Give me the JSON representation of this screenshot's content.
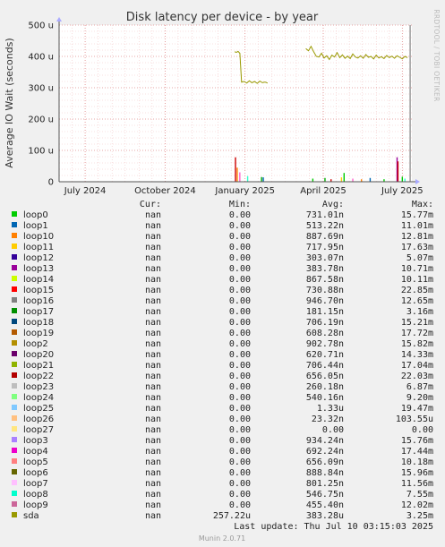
{
  "chart_data": {
    "type": "line",
    "title": "Disk latency per device - by year",
    "ylabel": "Average IO Wait (seconds)",
    "side_label": "RRDTOOL / TOBI OETIKER",
    "y_ticks": [
      "0",
      "100 u",
      "200 u",
      "300 u",
      "400 u",
      "500 u"
    ],
    "y_tick_values": [
      0,
      100,
      200,
      300,
      400,
      500
    ],
    "ylim": [
      0,
      500
    ],
    "y_unit": "u (microseconds)",
    "x_ticks": [
      "July 2024",
      "October 2024",
      "January 2025",
      "April 2025",
      "July 2025"
    ],
    "x_tick_values": [
      "2024-07-01",
      "2024-10-01",
      "2025-01-01",
      "2025-04-01",
      "2025-07-01"
    ],
    "xlim": [
      "2024-06-01",
      "2025-07-12"
    ],
    "grid": true,
    "series": [
      {
        "name": "sda",
        "color": "#999900",
        "points": [
          [
            "2024-12-20",
            415
          ],
          [
            "2024-12-22",
            413
          ],
          [
            "2024-12-24",
            416
          ],
          [
            "2024-12-26",
            410
          ],
          [
            "2024-12-28",
            318
          ],
          [
            "2024-12-31",
            320
          ],
          [
            "2025-01-03",
            315
          ],
          [
            "2025-01-06",
            322
          ],
          [
            "2025-01-09",
            316
          ],
          [
            "2025-01-12",
            320
          ],
          [
            "2025-01-15",
            314
          ],
          [
            "2025-01-18",
            321
          ],
          [
            "2025-01-21",
            316
          ],
          [
            "2025-01-24",
            318
          ],
          [
            "2025-01-27",
            315
          ],
          [
            "2025-03-12",
            425
          ],
          [
            "2025-03-15",
            418
          ],
          [
            "2025-03-18",
            432
          ],
          [
            "2025-03-21",
            415
          ],
          [
            "2025-03-24",
            400
          ],
          [
            "2025-03-27",
            398
          ],
          [
            "2025-03-30",
            410
          ],
          [
            "2025-04-02",
            395
          ],
          [
            "2025-04-05",
            402
          ],
          [
            "2025-04-08",
            390
          ],
          [
            "2025-04-11",
            404
          ],
          [
            "2025-04-14",
            398
          ],
          [
            "2025-04-17",
            412
          ],
          [
            "2025-04-20",
            396
          ],
          [
            "2025-04-23",
            405
          ],
          [
            "2025-04-26",
            394
          ],
          [
            "2025-04-29",
            401
          ],
          [
            "2025-05-02",
            393
          ],
          [
            "2025-05-05",
            408
          ],
          [
            "2025-05-08",
            398
          ],
          [
            "2025-05-11",
            395
          ],
          [
            "2025-05-14",
            402
          ],
          [
            "2025-05-17",
            394
          ],
          [
            "2025-05-20",
            406
          ],
          [
            "2025-05-23",
            397
          ],
          [
            "2025-05-26",
            400
          ],
          [
            "2025-05-29",
            392
          ],
          [
            "2025-06-01",
            404
          ],
          [
            "2025-06-04",
            395
          ],
          [
            "2025-06-07",
            399
          ],
          [
            "2025-06-10",
            393
          ],
          [
            "2025-06-13",
            403
          ],
          [
            "2025-06-16",
            396
          ],
          [
            "2025-06-19",
            401
          ],
          [
            "2025-06-22",
            394
          ],
          [
            "2025-06-25",
            402
          ],
          [
            "2025-06-28",
            397
          ],
          [
            "2025-07-01",
            392
          ],
          [
            "2025-07-04",
            400
          ],
          [
            "2025-07-07",
            396
          ]
        ]
      }
    ],
    "spikes": [
      {
        "date": "2024-12-21",
        "value": 78,
        "color": "#cc0000"
      },
      {
        "date": "2024-12-23",
        "value": 45,
        "color": "#ff8000"
      },
      {
        "date": "2024-12-26",
        "value": 30,
        "color": "#ff66cc"
      },
      {
        "date": "2025-01-04",
        "value": 18,
        "color": "#33ffcc"
      },
      {
        "date": "2025-01-20",
        "value": 15,
        "color": "#00aa00"
      },
      {
        "date": "2025-01-22",
        "value": 14,
        "color": "#0066b3"
      },
      {
        "date": "2025-03-20",
        "value": 10,
        "color": "#00cc00"
      },
      {
        "date": "2025-04-03",
        "value": 12,
        "color": "#00aa00"
      },
      {
        "date": "2025-04-10",
        "value": 8,
        "color": "#cc0000"
      },
      {
        "date": "2025-04-22",
        "value": 14,
        "color": "#ffcc00"
      },
      {
        "date": "2025-04-25",
        "value": 28,
        "color": "#00cc00"
      },
      {
        "date": "2025-05-05",
        "value": 10,
        "color": "#ff66cc"
      },
      {
        "date": "2025-05-15",
        "value": 8,
        "color": "#ff8000"
      },
      {
        "date": "2025-05-25",
        "value": 12,
        "color": "#0066b3"
      },
      {
        "date": "2025-06-10",
        "value": 8,
        "color": "#00cc00"
      },
      {
        "date": "2025-06-25",
        "value": 78,
        "color": "#990099"
      },
      {
        "date": "2025-06-26",
        "value": 65,
        "color": "#cc0000"
      },
      {
        "date": "2025-07-01",
        "value": 16,
        "color": "#00cc00"
      },
      {
        "date": "2025-07-04",
        "value": 10,
        "color": "#33ffcc"
      }
    ],
    "now_marker_date": "2025-07-10"
  },
  "legend": {
    "headers": {
      "cur": "Cur:",
      "min": "Min:",
      "avg": "Avg:",
      "max": "Max:"
    },
    "rows": [
      {
        "name": "loop0",
        "color": "#00cc00",
        "cur": "nan",
        "min": "0.00",
        "avg": "731.01n",
        "max": "15.77m"
      },
      {
        "name": "loop1",
        "color": "#0066b3",
        "cur": "nan",
        "min": "0.00",
        "avg": "513.22n",
        "max": "11.01m"
      },
      {
        "name": "loop10",
        "color": "#ff8000",
        "cur": "nan",
        "min": "0.00",
        "avg": "887.69n",
        "max": "12.81m"
      },
      {
        "name": "loop11",
        "color": "#ffcc00",
        "cur": "nan",
        "min": "0.00",
        "avg": "717.95n",
        "max": "17.63m"
      },
      {
        "name": "loop12",
        "color": "#330099",
        "cur": "nan",
        "min": "0.00",
        "avg": "303.07n",
        "max": "5.07m"
      },
      {
        "name": "loop13",
        "color": "#990099",
        "cur": "nan",
        "min": "0.00",
        "avg": "383.78n",
        "max": "10.71m"
      },
      {
        "name": "loop14",
        "color": "#ccff00",
        "cur": "nan",
        "min": "0.00",
        "avg": "867.58n",
        "max": "10.11m"
      },
      {
        "name": "loop15",
        "color": "#ff0000",
        "cur": "nan",
        "min": "0.00",
        "avg": "730.88n",
        "max": "22.85m"
      },
      {
        "name": "loop16",
        "color": "#808080",
        "cur": "nan",
        "min": "0.00",
        "avg": "946.70n",
        "max": "12.65m"
      },
      {
        "name": "loop17",
        "color": "#008f00",
        "cur": "nan",
        "min": "0.00",
        "avg": "181.15n",
        "max": "3.16m"
      },
      {
        "name": "loop18",
        "color": "#00487d",
        "cur": "nan",
        "min": "0.00",
        "avg": "706.19n",
        "max": "15.21m"
      },
      {
        "name": "loop19",
        "color": "#b35a00",
        "cur": "nan",
        "min": "0.00",
        "avg": "608.28n",
        "max": "17.72m"
      },
      {
        "name": "loop2",
        "color": "#b38f00",
        "cur": "nan",
        "min": "0.00",
        "avg": "902.78n",
        "max": "15.82m"
      },
      {
        "name": "loop20",
        "color": "#6b006b",
        "cur": "nan",
        "min": "0.00",
        "avg": "620.71n",
        "max": "14.33m"
      },
      {
        "name": "loop21",
        "color": "#8fb300",
        "cur": "nan",
        "min": "0.00",
        "avg": "706.44n",
        "max": "17.04m"
      },
      {
        "name": "loop22",
        "color": "#b30000",
        "cur": "nan",
        "min": "0.00",
        "avg": "656.05n",
        "max": "22.03m"
      },
      {
        "name": "loop23",
        "color": "#bebebe",
        "cur": "nan",
        "min": "0.00",
        "avg": "260.18n",
        "max": "6.87m"
      },
      {
        "name": "loop24",
        "color": "#80ff80",
        "cur": "nan",
        "min": "0.00",
        "avg": "540.16n",
        "max": "9.20m"
      },
      {
        "name": "loop25",
        "color": "#80c9ff",
        "cur": "nan",
        "min": "0.00",
        "avg": "1.33u",
        "max": "19.47m"
      },
      {
        "name": "loop26",
        "color": "#ffc080",
        "cur": "nan",
        "min": "0.00",
        "avg": "23.32n",
        "max": "103.55u"
      },
      {
        "name": "loop27",
        "color": "#ffe680",
        "cur": "nan",
        "min": "0.00",
        "avg": "0.00",
        "max": "0.00"
      },
      {
        "name": "loop3",
        "color": "#aa80ff",
        "cur": "nan",
        "min": "0.00",
        "avg": "934.24n",
        "max": "15.76m"
      },
      {
        "name": "loop4",
        "color": "#ee00cc",
        "cur": "nan",
        "min": "0.00",
        "avg": "692.24n",
        "max": "17.44m"
      },
      {
        "name": "loop5",
        "color": "#ff8080",
        "cur": "nan",
        "min": "0.00",
        "avg": "656.09n",
        "max": "10.18m"
      },
      {
        "name": "loop6",
        "color": "#666600",
        "cur": "nan",
        "min": "0.00",
        "avg": "888.84n",
        "max": "15.96m"
      },
      {
        "name": "loop7",
        "color": "#ffbfff",
        "cur": "nan",
        "min": "0.00",
        "avg": "801.25n",
        "max": "11.56m"
      },
      {
        "name": "loop8",
        "color": "#00ffcc",
        "cur": "nan",
        "min": "0.00",
        "avg": "546.75n",
        "max": "7.55m"
      },
      {
        "name": "loop9",
        "color": "#cc6699",
        "cur": "nan",
        "min": "0.00",
        "avg": "455.40n",
        "max": "12.02m"
      },
      {
        "name": "sda",
        "color": "#999900",
        "cur": "nan",
        "min": "257.22u",
        "avg": "383.28u",
        "max": "3.25m"
      }
    ]
  },
  "footer": {
    "last_update": "Last update: Thu Jul 10 03:15:03 2025",
    "munin_version": "Munin 2.0.71"
  }
}
